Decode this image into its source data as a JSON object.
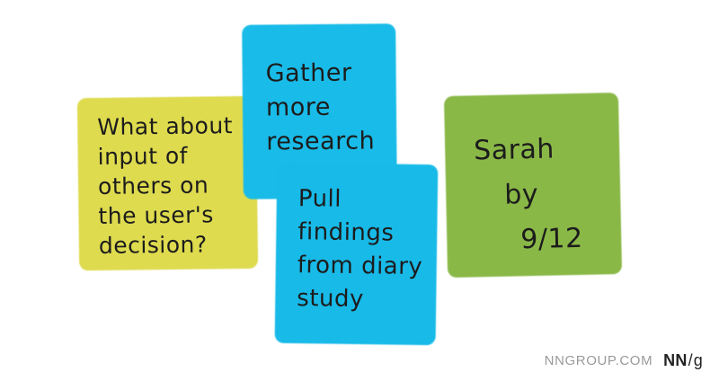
{
  "notes": [
    {
      "id": "yellow",
      "color": "#ddd94a",
      "lines": [
        "What about",
        "input of",
        "others on",
        "the user's",
        "decision?"
      ]
    },
    {
      "id": "blue-top",
      "color": "#1ab8e6",
      "lines": [
        "Gather",
        "more",
        "research"
      ]
    },
    {
      "id": "blue-bottom",
      "color": "#1ab8e6",
      "lines": [
        "Pull",
        "findings",
        "from diary",
        "study"
      ]
    },
    {
      "id": "green",
      "color": "#86b445",
      "lines": [
        "Sarah",
        "by",
        "9/12"
      ]
    }
  ],
  "footer": {
    "site": "NNGROUP.COM",
    "logo_nn": "NN",
    "logo_slash": "/",
    "logo_g": "g"
  }
}
